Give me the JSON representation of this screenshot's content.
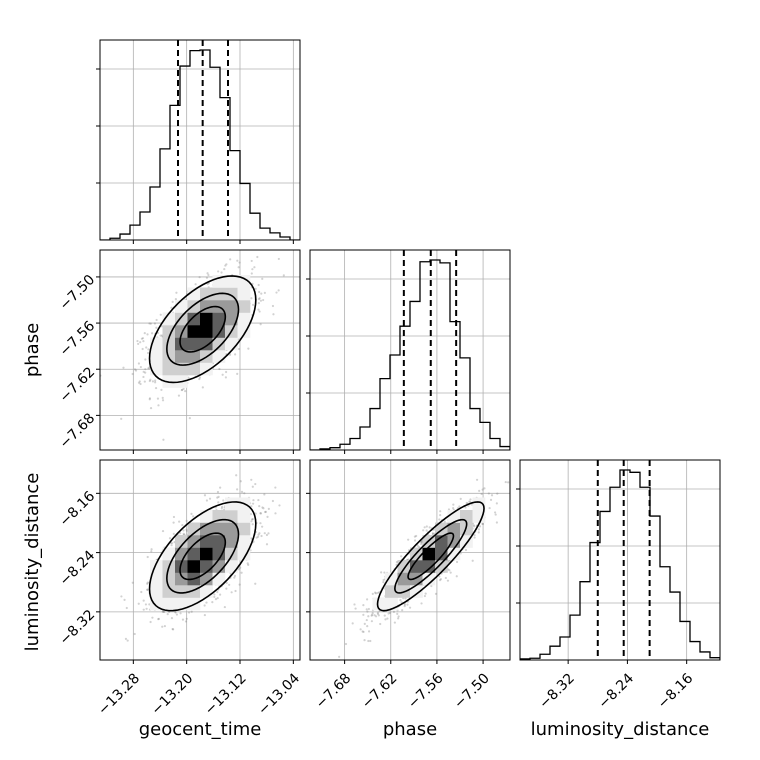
{
  "chart_data": {
    "type": "corner",
    "parameters": [
      "geocent_time",
      "phase",
      "luminosity_distance"
    ],
    "axis_labels": {
      "geocent_time": "geocent_time",
      "phase": "phase",
      "luminosity_distance": "luminosity_distance"
    },
    "ranges": {
      "geocent_time": [
        -13.33,
        -13.03
      ],
      "phase": [
        -7.725,
        -7.465
      ],
      "luminosity_distance": [
        -8.385,
        -8.115
      ]
    },
    "ticks": {
      "geocent_time": {
        "values": [
          -13.28,
          -13.2,
          -13.12,
          -13.04
        ],
        "labels": [
          "−13.28",
          "−13.20",
          "−13.12",
          "−13.04"
        ]
      },
      "phase": {
        "values": [
          -7.68,
          -7.62,
          -7.56,
          -7.5
        ],
        "labels": [
          "−7.68",
          "−7.62",
          "−7.56",
          "−7.50"
        ]
      },
      "luminosity_distance": {
        "values": [
          -8.32,
          -8.24,
          -8.16
        ],
        "labels": [
          "−8.32",
          "−8.24",
          "−8.16"
        ]
      }
    },
    "quantiles": {
      "geocent_time": [
        -13.213,
        -13.176,
        -13.138
      ],
      "phase": [
        -7.603,
        -7.568,
        -7.535
      ],
      "luminosity_distance": [
        -8.28,
        -8.245,
        -8.21
      ]
    },
    "histograms": {
      "geocent_time": {
        "edges": [
          -13.33,
          -13.315,
          -13.3,
          -13.285,
          -13.27,
          -13.255,
          -13.24,
          -13.225,
          -13.21,
          -13.195,
          -13.18,
          -13.165,
          -13.15,
          -13.135,
          -13.12,
          -13.105,
          -13.09,
          -13.075,
          -13.06,
          -13.045,
          -13.03
        ],
        "counts": [
          0,
          3,
          10,
          25,
          47,
          89,
          153,
          226,
          292,
          318,
          319,
          290,
          239,
          150,
          95,
          45,
          20,
          12,
          5,
          0
        ]
      },
      "phase": {
        "edges": [
          -7.725,
          -7.712,
          -7.699,
          -7.686,
          -7.673,
          -7.66,
          -7.647,
          -7.634,
          -7.621,
          -7.608,
          -7.595,
          -7.582,
          -7.569,
          -7.556,
          -7.543,
          -7.53,
          -7.517,
          -7.504,
          -7.491,
          -7.478,
          -7.465
        ],
        "counts": [
          0,
          2,
          4,
          10,
          20,
          40,
          72,
          124,
          165,
          215,
          258,
          327,
          330,
          325,
          223,
          160,
          72,
          48,
          20,
          6
        ]
      },
      "luminosity_distance": {
        "edges": [
          -8.385,
          -8.3715,
          -8.358,
          -8.3445,
          -8.331,
          -8.3175,
          -8.304,
          -8.2905,
          -8.277,
          -8.2635,
          -8.25,
          -8.2365,
          -8.223,
          -8.2095,
          -8.196,
          -8.1825,
          -8.169,
          -8.1555,
          -8.142,
          -8.1285,
          -8.115
        ],
        "counts": [
          2,
          3,
          10,
          24,
          40,
          78,
          136,
          204,
          258,
          300,
          330,
          326,
          300,
          250,
          162,
          118,
          67,
          32,
          14,
          4
        ]
      }
    },
    "posterior_2d": {
      "mean": {
        "geocent_time": -13.176,
        "phase": -7.568,
        "luminosity_distance": -8.245
      },
      "std": {
        "geocent_time": 0.038,
        "phase": 0.033,
        "luminosity_distance": 0.035
      },
      "correlation": {
        "phase|geocent_time": 0.55,
        "luminosity_distance|geocent_time": 0.6,
        "luminosity_distance|phase": 0.88
      }
    },
    "grid": true,
    "scatter_color": "#7f7f7f",
    "line_color": "#000000"
  }
}
